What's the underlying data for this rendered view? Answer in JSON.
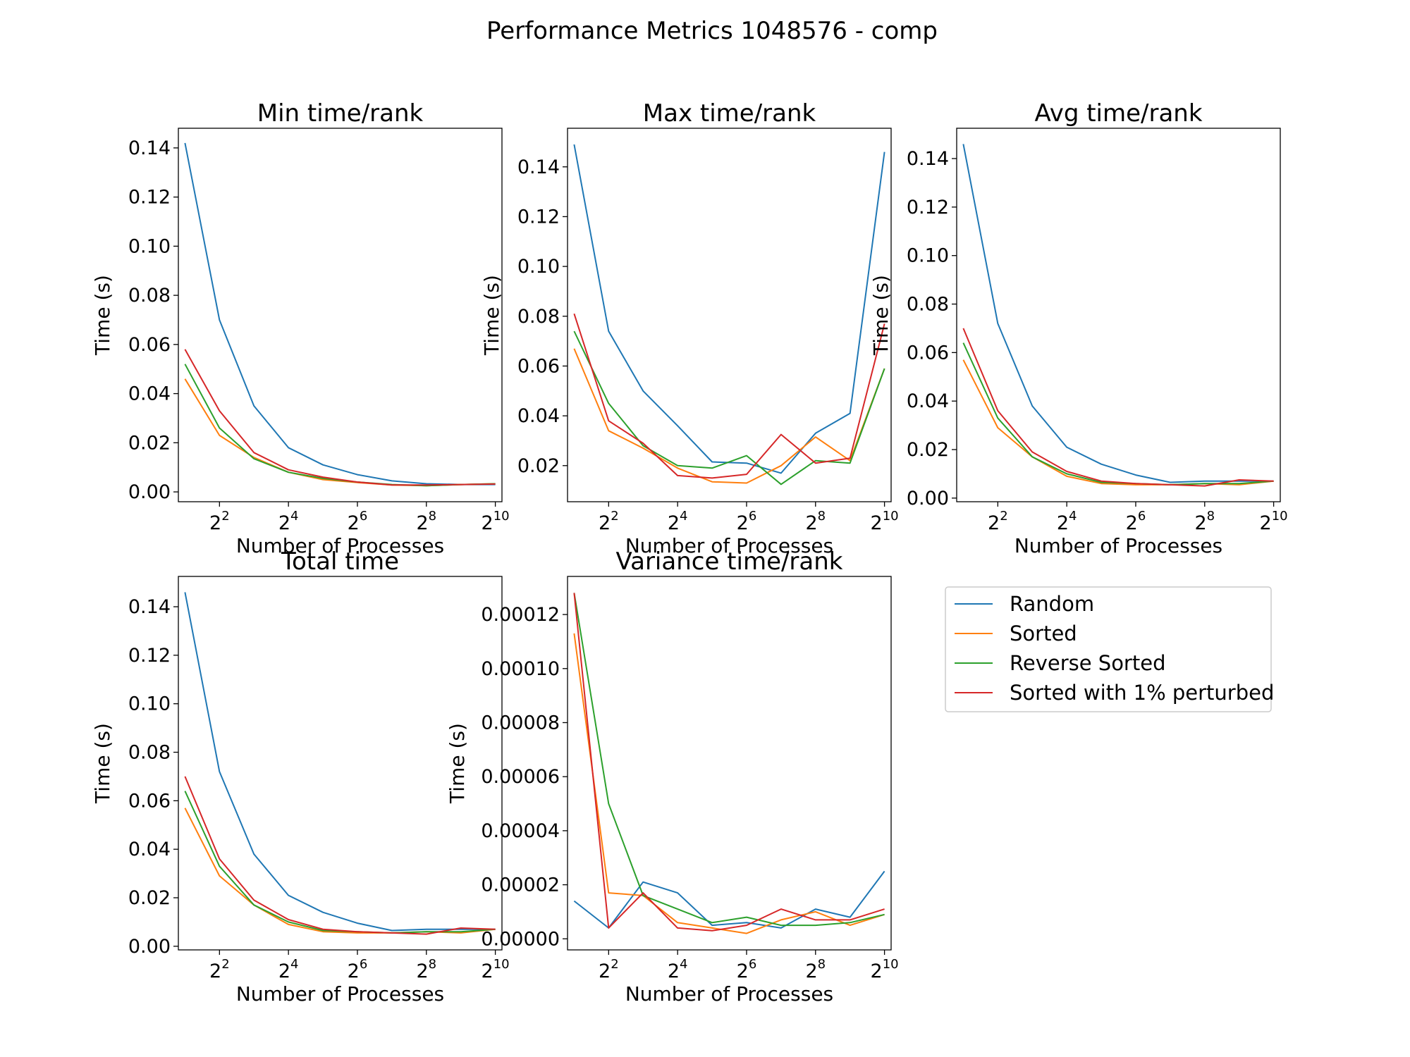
{
  "figure_title": "Performance Metrics 1048576 - comp",
  "legend": {
    "placement": "lower-right empty cell",
    "entries": [
      "Random",
      "Sorted",
      "Reverse Sorted",
      "Sorted with 1% perturbed"
    ]
  },
  "colors": {
    "Random": "#1f77b4",
    "Sorted": "#ff7f0e",
    "Reverse Sorted": "#2ca02c",
    "Sorted with 1% perturbed": "#d62728"
  },
  "chart_data": [
    {
      "type": "line",
      "title": "Min time/rank",
      "xlabel": "Number of Processes",
      "ylabel": "Time (s)",
      "x": [
        2,
        4,
        8,
        16,
        32,
        64,
        128,
        256,
        512,
        1024
      ],
      "x_scale": "log2",
      "xlim": [
        1.75,
        1170
      ],
      "ylim": [
        -0.004,
        0.148
      ],
      "yticks": [
        0.0,
        0.02,
        0.04,
        0.06,
        0.08,
        0.1,
        0.12,
        0.14
      ],
      "ytick_labels": [
        "0.00",
        "0.02",
        "0.04",
        "0.06",
        "0.08",
        "0.10",
        "0.12",
        "0.14"
      ],
      "xtick_values": [
        4,
        16,
        64,
        256,
        1024
      ],
      "xtick_labels": [
        {
          "base": "2",
          "exp": "2"
        },
        {
          "base": "2",
          "exp": "4"
        },
        {
          "base": "2",
          "exp": "6"
        },
        {
          "base": "2",
          "exp": "8"
        },
        {
          "base": "2",
          "exp": "10"
        }
      ],
      "series": [
        {
          "name": "Random",
          "values": [
            0.142,
            0.07,
            0.035,
            0.018,
            0.011,
            0.007,
            0.0045,
            0.0033,
            0.003,
            0.003
          ]
        },
        {
          "name": "Sorted",
          "values": [
            0.046,
            0.023,
            0.014,
            0.008,
            0.005,
            0.0038,
            0.0028,
            0.0025,
            0.003,
            0.0033
          ]
        },
        {
          "name": "Reverse Sorted",
          "values": [
            0.052,
            0.026,
            0.0135,
            0.008,
            0.0055,
            0.004,
            0.003,
            0.0025,
            0.003,
            0.0033
          ]
        },
        {
          "name": "Sorted with 1% perturbed",
          "values": [
            0.058,
            0.033,
            0.016,
            0.009,
            0.006,
            0.004,
            0.0028,
            0.0028,
            0.003,
            0.0032
          ]
        }
      ]
    },
    {
      "type": "line",
      "title": "Max time/rank",
      "xlabel": "Number of Processes",
      "ylabel": "Time (s)",
      "x": [
        2,
        4,
        8,
        16,
        32,
        64,
        128,
        256,
        512,
        1024
      ],
      "x_scale": "log2",
      "xlim": [
        1.75,
        1170
      ],
      "ylim": [
        0.0055,
        0.1555
      ],
      "yticks": [
        0.02,
        0.04,
        0.06,
        0.08,
        0.1,
        0.12,
        0.14
      ],
      "ytick_labels": [
        "0.02",
        "0.04",
        "0.06",
        "0.08",
        "0.10",
        "0.12",
        "0.14"
      ],
      "xtick_values": [
        4,
        16,
        64,
        256,
        1024
      ],
      "xtick_labels": [
        {
          "base": "2",
          "exp": "2"
        },
        {
          "base": "2",
          "exp": "4"
        },
        {
          "base": "2",
          "exp": "6"
        },
        {
          "base": "2",
          "exp": "8"
        },
        {
          "base": "2",
          "exp": "10"
        }
      ],
      "series": [
        {
          "name": "Random",
          "values": [
            0.149,
            0.074,
            0.05,
            0.036,
            0.0215,
            0.021,
            0.017,
            0.033,
            0.041,
            0.146
          ]
        },
        {
          "name": "Sorted",
          "values": [
            0.067,
            0.034,
            0.027,
            0.019,
            0.0135,
            0.013,
            0.02,
            0.0315,
            0.022,
            0.059
          ]
        },
        {
          "name": "Reverse Sorted",
          "values": [
            0.074,
            0.045,
            0.028,
            0.02,
            0.019,
            0.024,
            0.0125,
            0.022,
            0.021,
            0.059
          ]
        },
        {
          "name": "Sorted with 1% perturbed",
          "values": [
            0.081,
            0.038,
            0.029,
            0.016,
            0.015,
            0.0165,
            0.0325,
            0.021,
            0.023,
            0.077
          ]
        }
      ]
    },
    {
      "type": "line",
      "title": "Avg time/rank",
      "xlabel": "Number of Processes",
      "ylabel": "Time (s)",
      "x": [
        2,
        4,
        8,
        16,
        32,
        64,
        128,
        256,
        512,
        1024
      ],
      "x_scale": "log2",
      "xlim": [
        1.75,
        1170
      ],
      "ylim": [
        -0.0015,
        0.1525
      ],
      "yticks": [
        0.0,
        0.02,
        0.04,
        0.06,
        0.08,
        0.1,
        0.12,
        0.14
      ],
      "ytick_labels": [
        "0.00",
        "0.02",
        "0.04",
        "0.06",
        "0.08",
        "0.10",
        "0.12",
        "0.14"
      ],
      "xtick_values": [
        4,
        16,
        64,
        256,
        1024
      ],
      "xtick_labels": [
        {
          "base": "2",
          "exp": "2"
        },
        {
          "base": "2",
          "exp": "4"
        },
        {
          "base": "2",
          "exp": "6"
        },
        {
          "base": "2",
          "exp": "8"
        },
        {
          "base": "2",
          "exp": "10"
        }
      ],
      "series": [
        {
          "name": "Random",
          "values": [
            0.146,
            0.072,
            0.038,
            0.021,
            0.014,
            0.0095,
            0.0065,
            0.007,
            0.007,
            0.007
          ]
        },
        {
          "name": "Sorted",
          "values": [
            0.057,
            0.029,
            0.017,
            0.009,
            0.006,
            0.0055,
            0.0055,
            0.006,
            0.0055,
            0.007
          ]
        },
        {
          "name": "Reverse Sorted",
          "values": [
            0.064,
            0.033,
            0.017,
            0.01,
            0.0065,
            0.006,
            0.0055,
            0.006,
            0.006,
            0.007
          ]
        },
        {
          "name": "Sorted with 1% perturbed",
          "values": [
            0.07,
            0.036,
            0.019,
            0.011,
            0.007,
            0.006,
            0.0055,
            0.005,
            0.0075,
            0.007
          ]
        }
      ]
    },
    {
      "type": "line",
      "title": "Total time",
      "xlabel": "Number of Processes",
      "ylabel": "Time (s)",
      "x": [
        2,
        4,
        8,
        16,
        32,
        64,
        128,
        256,
        512,
        1024
      ],
      "x_scale": "log2",
      "xlim": [
        1.75,
        1170
      ],
      "ylim": [
        -0.0015,
        0.1525
      ],
      "yticks": [
        0.0,
        0.02,
        0.04,
        0.06,
        0.08,
        0.1,
        0.12,
        0.14
      ],
      "ytick_labels": [
        "0.00",
        "0.02",
        "0.04",
        "0.06",
        "0.08",
        "0.10",
        "0.12",
        "0.14"
      ],
      "xtick_values": [
        4,
        16,
        64,
        256,
        1024
      ],
      "xtick_labels": [
        {
          "base": "2",
          "exp": "2"
        },
        {
          "base": "2",
          "exp": "4"
        },
        {
          "base": "2",
          "exp": "6"
        },
        {
          "base": "2",
          "exp": "8"
        },
        {
          "base": "2",
          "exp": "10"
        }
      ],
      "series": [
        {
          "name": "Random",
          "values": [
            0.146,
            0.072,
            0.038,
            0.021,
            0.014,
            0.0095,
            0.0065,
            0.007,
            0.007,
            0.007
          ]
        },
        {
          "name": "Sorted",
          "values": [
            0.057,
            0.029,
            0.017,
            0.009,
            0.006,
            0.0055,
            0.0055,
            0.006,
            0.0055,
            0.007
          ]
        },
        {
          "name": "Reverse Sorted",
          "values": [
            0.064,
            0.033,
            0.017,
            0.01,
            0.0065,
            0.006,
            0.0055,
            0.006,
            0.006,
            0.007
          ]
        },
        {
          "name": "Sorted with 1% perturbed",
          "values": [
            0.07,
            0.036,
            0.019,
            0.011,
            0.007,
            0.006,
            0.0055,
            0.005,
            0.0075,
            0.007
          ]
        }
      ]
    },
    {
      "type": "line",
      "title": "Variance time/rank",
      "xlabel": "Number of Processes",
      "ylabel": "Time (s)",
      "x": [
        2,
        4,
        8,
        16,
        32,
        64,
        128,
        256,
        512,
        1024
      ],
      "x_scale": "log2",
      "xlim": [
        1.75,
        1170
      ],
      "ylim": [
        -4.1e-06,
        0.0001341
      ],
      "yticks": [
        0.0,
        2e-05,
        4e-05,
        6e-05,
        8e-05,
        0.0001,
        0.00012
      ],
      "ytick_labels": [
        "0.00000",
        "0.00002",
        "0.00004",
        "0.00006",
        "0.00008",
        "0.00010",
        "0.00012"
      ],
      "xtick_values": [
        4,
        16,
        64,
        256,
        1024
      ],
      "xtick_labels": [
        {
          "base": "2",
          "exp": "2"
        },
        {
          "base": "2",
          "exp": "4"
        },
        {
          "base": "2",
          "exp": "6"
        },
        {
          "base": "2",
          "exp": "8"
        },
        {
          "base": "2",
          "exp": "10"
        }
      ],
      "series": [
        {
          "name": "Random",
          "values": [
            1.4e-05,
            4e-06,
            2.1e-05,
            1.7e-05,
            5e-06,
            6e-06,
            4e-06,
            1.1e-05,
            8e-06,
            2.5e-05
          ]
        },
        {
          "name": "Sorted",
          "values": [
            0.000113,
            1.7e-05,
            1.6e-05,
            6e-06,
            4e-06,
            2e-06,
            7e-06,
            1e-05,
            5e-06,
            9e-06
          ]
        },
        {
          "name": "Reverse Sorted",
          "values": [
            0.000128,
            5e-05,
            1.6e-05,
            1.1e-05,
            6e-06,
            8e-06,
            5e-06,
            5e-06,
            6e-06,
            9e-06
          ]
        },
        {
          "name": "Sorted with 1% perturbed",
          "values": [
            0.000128,
            4e-06,
            1.7e-05,
            4e-06,
            3e-06,
            5e-06,
            1.1e-05,
            7e-06,
            7e-06,
            1.1e-05
          ]
        }
      ]
    }
  ]
}
